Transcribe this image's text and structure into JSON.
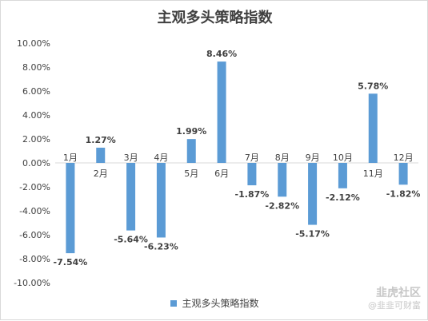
{
  "chart_data": {
    "type": "bar",
    "title": "主观多头策略指数",
    "categories": [
      "1月",
      "2月",
      "3月",
      "4月",
      "5月",
      "6月",
      "7月",
      "8月",
      "9月",
      "10月",
      "11月",
      "12月"
    ],
    "series": [
      {
        "name": "主观多头策略指数",
        "values": [
          -7.54,
          1.27,
          -5.64,
          -6.23,
          1.99,
          8.46,
          -1.87,
          -2.82,
          -5.17,
          -2.12,
          5.78,
          -1.82
        ]
      }
    ],
    "data_labels": [
      "-7.54%",
      "1.27%",
      "-5.64%",
      "-6.23%",
      "1.99%",
      "8.46%",
      "-1.87%",
      "-2.82%",
      "-5.17%",
      "-2.12%",
      "5.78%",
      "-1.82%"
    ],
    "yticks": [
      "10.00%",
      "8.00%",
      "6.00%",
      "4.00%",
      "2.00%",
      "0.00%",
      "-2.00%",
      "-4.00%",
      "-6.00%",
      "-8.00%",
      "-10.00%"
    ],
    "ylim": [
      -10,
      10
    ],
    "xlabel": "",
    "ylabel": "",
    "grid": false,
    "legend": "bottom",
    "bar_color": "#5b9bd5"
  },
  "watermark": {
    "main": "韭虎社区",
    "sub": "@韭韭可财富"
  }
}
